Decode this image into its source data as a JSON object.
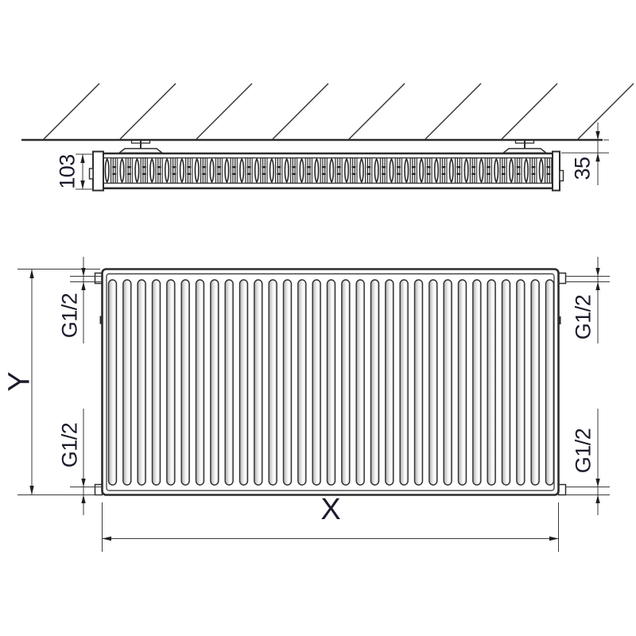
{
  "document": {
    "title": "Panel radiator dimensional technical drawing",
    "background": "#ffffff"
  },
  "colors": {
    "object_line": "#2d2d2d",
    "dimension_line": "#3a3a3a",
    "text": "#1b1b2b",
    "groove_shadow": "#adadad"
  },
  "top_view": {
    "name": "top-view-section-at-wall",
    "depth_dimension": {
      "label": "103"
    },
    "wall_distance_dimension": {
      "label": "35"
    },
    "hatch_line_count": 8,
    "bracket_count": 2,
    "fin_unit_count": 30
  },
  "front_view": {
    "name": "front-view",
    "height_dimension": {
      "label": "Y"
    },
    "width_dimension": {
      "label": "X"
    },
    "groove_count": 31,
    "connections": [
      {
        "position": "top-left",
        "label": "G1/2"
      },
      {
        "position": "bottom-left",
        "label": "G1/2"
      },
      {
        "position": "top-right",
        "label": "G1/2"
      },
      {
        "position": "bottom-right",
        "label": "G1/2"
      }
    ]
  }
}
